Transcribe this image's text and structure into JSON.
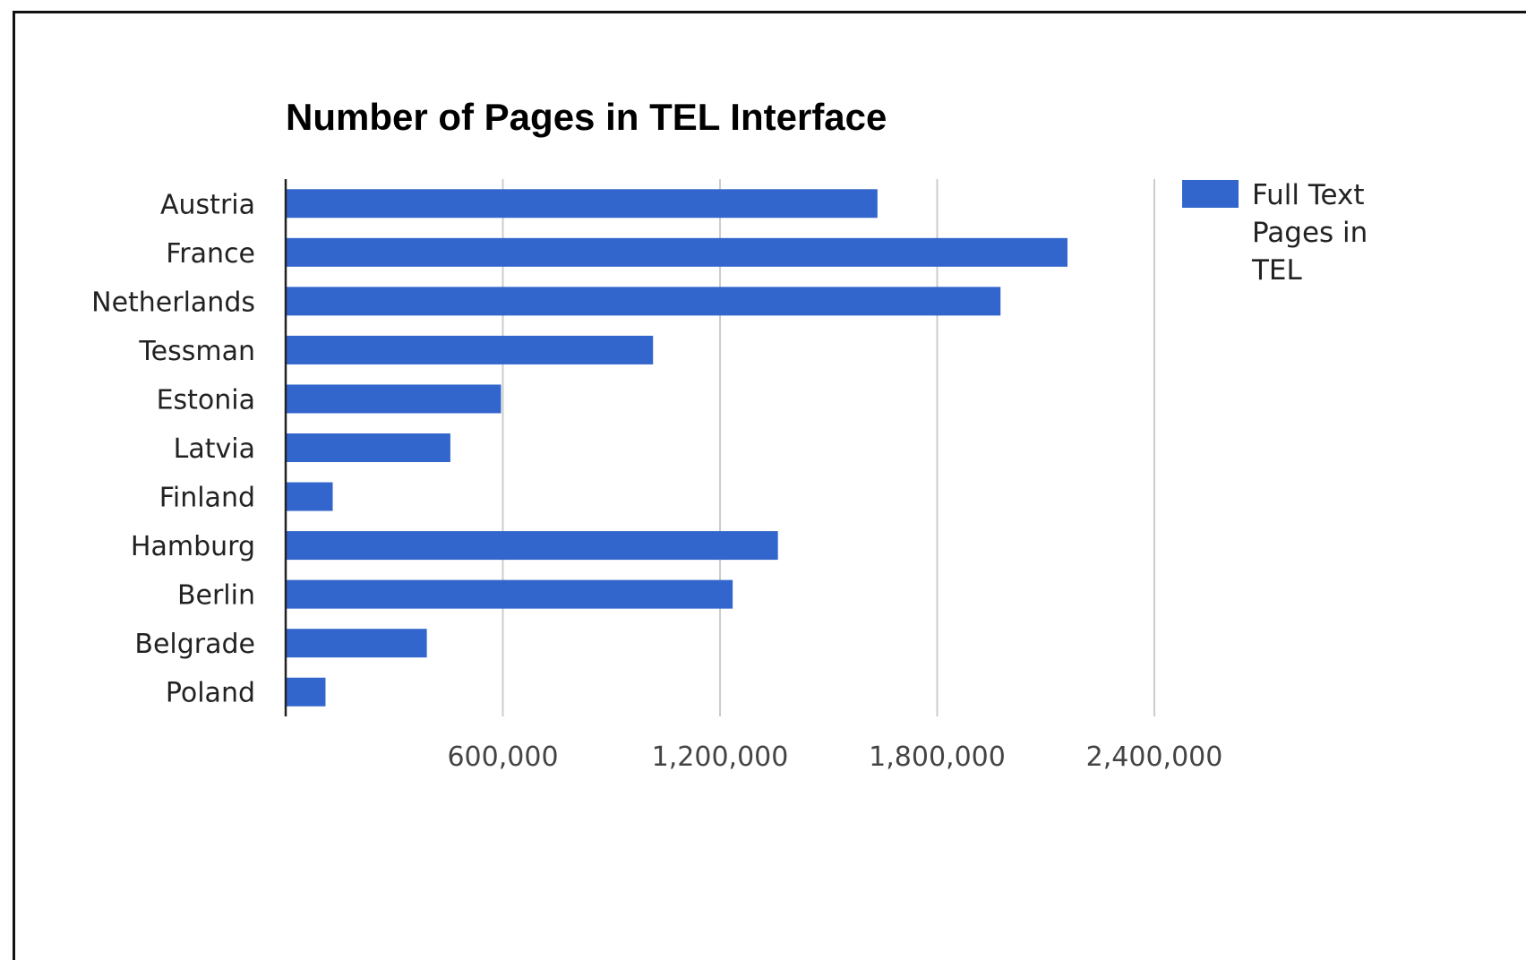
{
  "chart_data": {
    "type": "bar",
    "orientation": "horizontal",
    "title": "Number of Pages in TEL Interface",
    "xlabel": "",
    "ylabel": "",
    "categories": [
      "Austria",
      "France",
      "Netherlands",
      "Tessman",
      "Estonia",
      "Latvia",
      "Finland",
      "Hamburg",
      "Berlin",
      "Belgrade",
      "Poland"
    ],
    "series": [
      {
        "name": "Full Text Pages in TEL",
        "values": [
          1635000,
          2160000,
          1975000,
          1015000,
          595000,
          455000,
          130000,
          1360000,
          1235000,
          390000,
          110000
        ],
        "color": "#3366cc"
      }
    ],
    "xlim": [
      0,
      2400000
    ],
    "xticks": [
      600000,
      1200000,
      1800000,
      2400000
    ],
    "xtick_labels": [
      "600,000",
      "1,200,000",
      "1,800,000",
      "2,400,000"
    ],
    "grid": "vertical",
    "legend_position": "right",
    "legend_lines": [
      "Full Text",
      "Pages in",
      "TEL"
    ]
  }
}
